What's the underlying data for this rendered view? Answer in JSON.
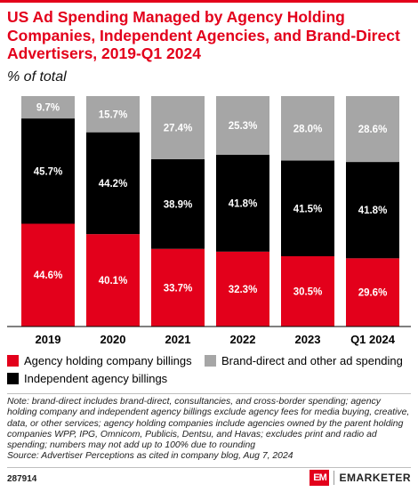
{
  "header": {
    "title": "US Ad Spending Managed by Agency Holding Companies, Independent Agencies, and Brand-Direct Advertisers, 2019-Q1 2024",
    "subtitle": "% of total"
  },
  "chart_data": {
    "type": "bar",
    "stacked": true,
    "categories": [
      "2019",
      "2020",
      "2021",
      "2022",
      "2023",
      "Q1 2024"
    ],
    "series": [
      {
        "name": "Agency holding company billings",
        "color": "#e3001b",
        "values": [
          44.6,
          40.1,
          33.7,
          32.3,
          30.5,
          29.6
        ],
        "labels": [
          "44.6%",
          "40.1%",
          "33.7%",
          "32.3%",
          "30.5%",
          "29.6%"
        ]
      },
      {
        "name": "Independent agency billings",
        "color": "#000000",
        "values": [
          45.7,
          44.2,
          38.9,
          41.8,
          41.5,
          41.8
        ],
        "labels": [
          "45.7%",
          "44.2%",
          "38.9%",
          "41.8%",
          "41.5%",
          "41.8%"
        ]
      },
      {
        "name": "Brand-direct and other ad spending",
        "color": "#a6a6a6",
        "values": [
          9.7,
          15.7,
          27.4,
          25.3,
          28.0,
          28.6
        ],
        "labels": [
          "9.7%",
          "15.7%",
          "27.4%",
          "25.3%",
          "28.0%",
          "28.6%"
        ]
      }
    ],
    "ylim": [
      0,
      100
    ],
    "grid": false,
    "legend_position": "bottom"
  },
  "legend": {
    "items": [
      {
        "label": "Agency holding company billings",
        "color": "#e3001b"
      },
      {
        "label": "Brand-direct and other ad spending",
        "color": "#a6a6a6"
      },
      {
        "label": "Independent agency billings",
        "color": "#000000"
      }
    ]
  },
  "note": {
    "text": "Note: brand-direct includes brand-direct, consultancies, and cross-border spending; agency holding company and independent agency billings exclude agency fees for media buying, creative, data, or other services; agency holding companies include agencies owned by the parent holding companies WPP, IPG, Omnicom, Publicis, Dentsu, and Havas; excludes print and radio ad spending; numbers may not add up to 100% due to rounding",
    "source": "Source: Advertiser Perceptions as cited in company blog, Aug 7, 2024"
  },
  "footer": {
    "chart_id": "287914",
    "brand_mark": "EM",
    "brand_name": "EMARKETER"
  }
}
